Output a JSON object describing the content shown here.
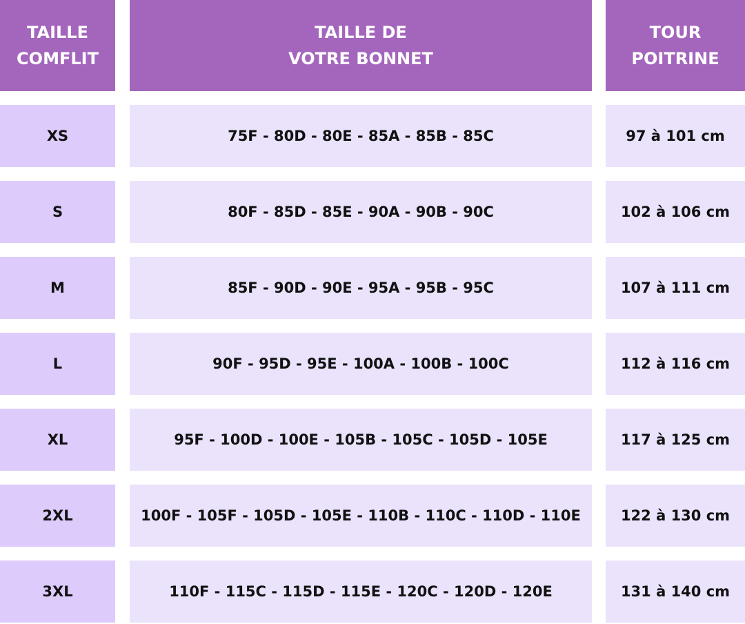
{
  "table": {
    "header": [
      [
        "TAILLE",
        "COMFLIT"
      ],
      [
        "TAILLE DE",
        "VOTRE BONNET"
      ],
      [
        "TOUR",
        "POITRINE"
      ]
    ],
    "rows": [
      [
        "XS",
        "75F - 80D - 80E - 85A - 85B - 85C",
        "97 à 101 cm"
      ],
      [
        "S",
        "80F - 85D - 85E - 90A - 90B - 90C",
        "102 à 106 cm"
      ],
      [
        "M",
        "85F - 90D - 90E - 95A - 95B - 95C",
        "107 à 111 cm"
      ],
      [
        "L",
        "90F - 95D - 95E - 100A - 100B - 100C",
        "112 à 116 cm"
      ],
      [
        "XL",
        "95F - 100D - 100E - 105B - 105C - 105D - 105E",
        "117 à 125 cm"
      ],
      [
        "2XL",
        "100F - 105F - 105D - 105E - 110B - 110C - 110D - 110E",
        "122 à 130 cm"
      ],
      [
        "3XL",
        "110F - 115C - 115D - 115E - 120C - 120D - 120E",
        "131 à 140 cm"
      ]
    ]
  }
}
